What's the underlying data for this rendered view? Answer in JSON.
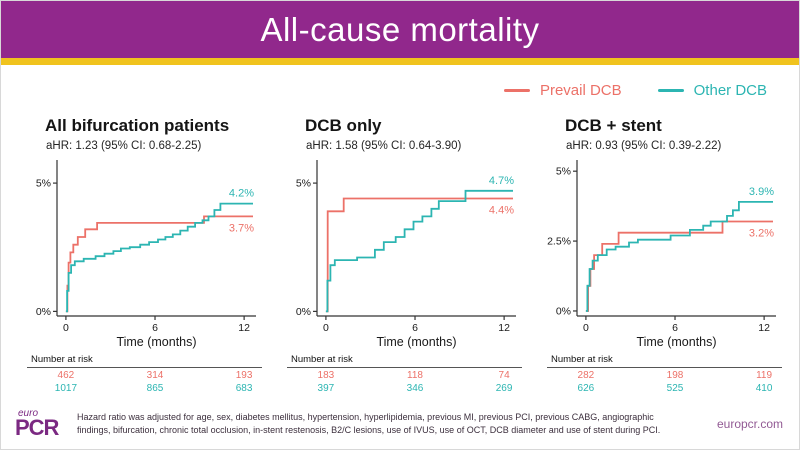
{
  "header": {
    "title": "All-cause mortality"
  },
  "colors": {
    "purple": "#91288C",
    "yellow": "#F0C31E",
    "prevail": "#EC7168",
    "other": "#2CB5B2",
    "axis": "#333333",
    "text": "#1a1a1a"
  },
  "legend": [
    {
      "label": "Prevail DCB",
      "color": "#EC7168"
    },
    {
      "label": "Other DCB",
      "color": "#2CB5B2"
    }
  ],
  "risk_header": "Number at risk",
  "chart_data": [
    {
      "type": "line",
      "title": "All bifurcation patients",
      "subtitle": "aHR: 1.23 (95% CI: 0.68-2.25)",
      "xlabel": "Time (months)",
      "x_ticks": [
        0,
        6,
        12
      ],
      "xlim": [
        -0.6,
        12.8
      ],
      "ylim": [
        -0.18,
        5.9
      ],
      "y_ticks": [
        0,
        5
      ],
      "y_tick_labels": [
        "0%",
        "5%"
      ],
      "series": [
        {
          "name": "Prevail DCB",
          "color_key": "prevail",
          "end_label": "3.7%",
          "label_position": "below",
          "steps": [
            [
              0,
              0
            ],
            [
              0.1,
              1.0
            ],
            [
              0.18,
              1.9
            ],
            [
              0.3,
              2.3
            ],
            [
              0.5,
              2.6
            ],
            [
              0.8,
              2.9
            ],
            [
              1.3,
              3.2
            ],
            [
              2.1,
              3.45
            ],
            [
              9.3,
              3.7
            ],
            [
              12.6,
              3.7
            ]
          ]
        },
        {
          "name": "Other DCB",
          "color_key": "other",
          "end_label": "4.2%",
          "label_position": "above",
          "steps": [
            [
              0,
              0
            ],
            [
              0.08,
              0.8
            ],
            [
              0.18,
              1.5
            ],
            [
              0.35,
              1.8
            ],
            [
              0.6,
              1.95
            ],
            [
              1.2,
              2.05
            ],
            [
              2.0,
              2.15
            ],
            [
              2.6,
              2.25
            ],
            [
              3.2,
              2.35
            ],
            [
              3.7,
              2.45
            ],
            [
              4.3,
              2.5
            ],
            [
              5.0,
              2.6
            ],
            [
              5.6,
              2.7
            ],
            [
              6.2,
              2.8
            ],
            [
              6.7,
              2.9
            ],
            [
              7.2,
              3.0
            ],
            [
              7.7,
              3.15
            ],
            [
              8.2,
              3.3
            ],
            [
              8.7,
              3.45
            ],
            [
              9.2,
              3.55
            ],
            [
              9.6,
              3.7
            ],
            [
              10.0,
              3.95
            ],
            [
              10.4,
              4.2
            ],
            [
              12.6,
              4.2
            ]
          ]
        }
      ],
      "number_at_risk": [
        [
          "462",
          "314",
          "193"
        ],
        [
          "1017",
          "865",
          "683"
        ]
      ]
    },
    {
      "type": "line",
      "title": "DCB only",
      "subtitle": "aHR: 1.58 (95% CI: 0.64-3.90)",
      "xlabel": "Time (months)",
      "x_ticks": [
        0,
        6,
        12
      ],
      "xlim": [
        -0.6,
        12.8
      ],
      "ylim": [
        -0.18,
        5.9
      ],
      "y_ticks": [
        0,
        5
      ],
      "y_tick_labels": [
        "0%",
        "5%"
      ],
      "series": [
        {
          "name": "Prevail DCB",
          "color_key": "prevail",
          "end_label": "4.4%",
          "label_position": "below",
          "steps": [
            [
              0,
              0
            ],
            [
              0.12,
              3.9
            ],
            [
              1.2,
              4.4
            ],
            [
              12.6,
              4.4
            ]
          ]
        },
        {
          "name": "Other DCB",
          "color_key": "other",
          "end_label": "4.7%",
          "label_position": "above",
          "steps": [
            [
              0,
              0
            ],
            [
              0.1,
              1.2
            ],
            [
              0.3,
              1.8
            ],
            [
              0.6,
              2.0
            ],
            [
              2.1,
              2.1
            ],
            [
              3.3,
              2.4
            ],
            [
              3.9,
              2.7
            ],
            [
              4.7,
              2.9
            ],
            [
              5.3,
              3.2
            ],
            [
              5.9,
              3.5
            ],
            [
              6.5,
              3.7
            ],
            [
              7.1,
              4.0
            ],
            [
              7.6,
              4.3
            ],
            [
              9.4,
              4.7
            ],
            [
              12.6,
              4.7
            ]
          ]
        }
      ],
      "number_at_risk": [
        [
          "183",
          "118",
          "74"
        ],
        [
          "397",
          "346",
          "269"
        ]
      ]
    },
    {
      "type": "line",
      "title": "DCB + stent",
      "subtitle": "aHR: 0.93 (95% CI: 0.39-2.22)",
      "xlabel": "Time (months)",
      "x_ticks": [
        0,
        6,
        12
      ],
      "xlim": [
        -0.6,
        12.8
      ],
      "ylim": [
        -0.18,
        5.4
      ],
      "y_ticks": [
        0,
        2.5,
        5
      ],
      "y_tick_labels": [
        "0%",
        "2.5%",
        "5%"
      ],
      "series": [
        {
          "name": "Prevail DCB",
          "color_key": "prevail",
          "end_label": "3.2%",
          "label_position": "below",
          "steps": [
            [
              0,
              0
            ],
            [
              0.15,
              0.9
            ],
            [
              0.3,
              1.5
            ],
            [
              0.55,
              2.0
            ],
            [
              1.1,
              2.4
            ],
            [
              2.2,
              2.8
            ],
            [
              9.2,
              3.2
            ],
            [
              12.6,
              3.2
            ]
          ]
        },
        {
          "name": "Other DCB",
          "color_key": "other",
          "end_label": "3.9%",
          "label_position": "above",
          "steps": [
            [
              0,
              0
            ],
            [
              0.1,
              0.9
            ],
            [
              0.25,
              1.5
            ],
            [
              0.45,
              1.8
            ],
            [
              0.8,
              2.0
            ],
            [
              1.4,
              2.2
            ],
            [
              2.0,
              2.3
            ],
            [
              2.9,
              2.45
            ],
            [
              3.5,
              2.55
            ],
            [
              5.7,
              2.7
            ],
            [
              7.0,
              2.9
            ],
            [
              7.9,
              3.05
            ],
            [
              8.4,
              3.2
            ],
            [
              9.5,
              3.4
            ],
            [
              9.9,
              3.6
            ],
            [
              10.3,
              3.9
            ],
            [
              12.6,
              3.9
            ]
          ]
        }
      ],
      "number_at_risk": [
        [
          "282",
          "198",
          "119"
        ],
        [
          "626",
          "525",
          "410"
        ]
      ]
    }
  ],
  "footer": {
    "logo_top": "euro",
    "logo_main": "PCR",
    "note": "Hazard ratio was adjusted for age, sex, diabetes mellitus, hypertension, hyperlipidemia, previous MI, previous PCI, previous CABG, angiographic findings, bifurcation, chronic total occlusion, in-stent restenosis, B2/C lesions, use of IVUS, use of OCT, DCB diameter and use of stent during PCI.",
    "website": "europcr.com"
  }
}
